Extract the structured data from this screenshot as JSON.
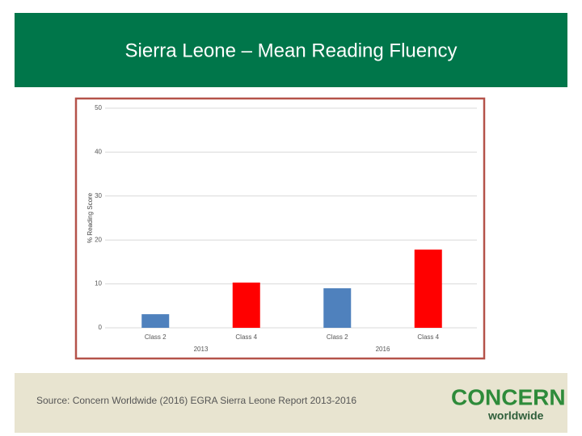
{
  "chart_data": {
    "type": "bar",
    "title": "Sierra Leone – Mean Reading Fluency",
    "y_label": "% Reading Score",
    "categories": [
      "Class 2",
      "Class 4",
      "Class 2",
      "Class 4"
    ],
    "groups": [
      "2013",
      "2016"
    ],
    "values": [
      3.1,
      10.3,
      9.0,
      17.8
    ],
    "colors": [
      "#4f81bd",
      "#ff0000",
      "#4f81bd",
      "#ff0000"
    ],
    "ylim": [
      0,
      50
    ],
    "yticks": [
      0,
      10,
      20,
      30,
      40,
      50
    ],
    "grid": true
  },
  "source": "Source: Concern Worldwide (2016) EGRA Sierra Leone Report 2013-2016",
  "logo": {
    "name": "CONCERN",
    "tagline": "worldwide"
  }
}
